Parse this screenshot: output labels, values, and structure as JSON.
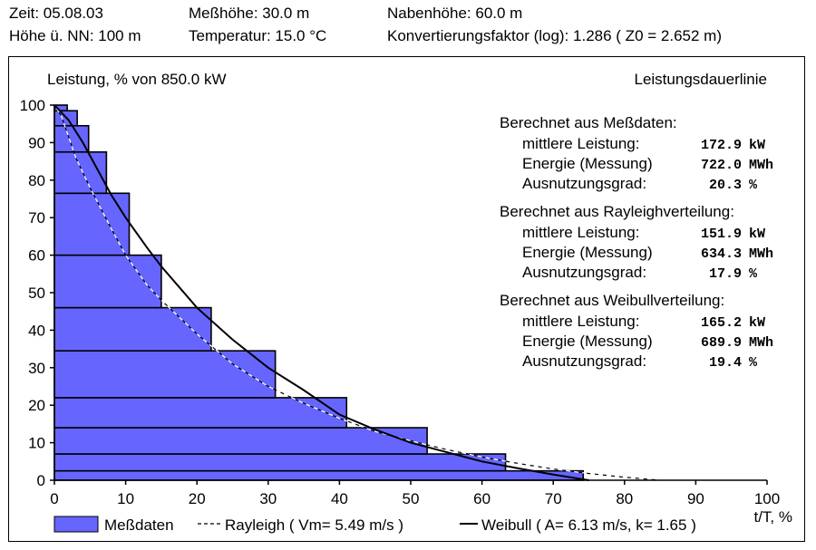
{
  "header": {
    "zeit": "Zeit:  05.08.03",
    "hoehe_nn": "Höhe ü. NN:  100 m",
    "messhoehe": "Meßhöhe: 30.0 m",
    "temperatur": "Temperatur: 15.0 °C",
    "nabenhoehe": "Nabenhöhe: 60.0 m",
    "konvertierung": "Konvertierungsfaktor (log):  1.286 ( Z0 = 2.652 m)"
  },
  "chart_data": {
    "type": "bar",
    "title": "Leistungsdauerlinie",
    "ylabel": "Leistung, % von 850.0 kW",
    "xlabel": "t/T, %",
    "xlim": [
      0,
      100
    ],
    "ylim": [
      0,
      100
    ],
    "x_ticks": [
      0,
      10,
      20,
      30,
      40,
      50,
      60,
      70,
      80,
      90,
      100
    ],
    "y_ticks": [
      0,
      10,
      20,
      30,
      40,
      50,
      60,
      70,
      80,
      90,
      100
    ],
    "x_tick_labels": [
      "0",
      "10",
      "20",
      "30",
      "40",
      "50",
      "60",
      "70",
      "80",
      "90",
      "100"
    ],
    "y_tick_labels": [
      "0",
      "10",
      "20",
      "30",
      "40",
      "50",
      "60",
      "70",
      "80",
      "90",
      "100"
    ],
    "colors": {
      "bars": "#6666ff",
      "rayleigh": "#ffffff",
      "weibull": "#000000"
    },
    "bars": [
      {
        "y0": 0.0,
        "y1": 2.5,
        "x": 74.2
      },
      {
        "y0": 2.5,
        "y1": 7.0,
        "x": 63.3
      },
      {
        "y0": 7.0,
        "y1": 14.0,
        "x": 52.3
      },
      {
        "y0": 14.0,
        "y1": 22.0,
        "x": 41.0
      },
      {
        "y0": 22.0,
        "y1": 34.5,
        "x": 31.0
      },
      {
        "y0": 34.5,
        "y1": 46.0,
        "x": 22.0
      },
      {
        "y0": 46.0,
        "y1": 60.0,
        "x": 15.0
      },
      {
        "y0": 60.0,
        "y1": 76.5,
        "x": 10.5
      },
      {
        "y0": 76.5,
        "y1": 87.5,
        "x": 7.3
      },
      {
        "y0": 87.5,
        "y1": 94.5,
        "x": 4.8
      },
      {
        "y0": 94.5,
        "y1": 98.5,
        "x": 3.2
      },
      {
        "y0": 98.5,
        "y1": 100.0,
        "x": 1.8
      }
    ],
    "series": [
      {
        "name": "Rayleigh ( Vm= 5.49 m/s )",
        "x": [
          0,
          1,
          3,
          5,
          8,
          10,
          13,
          15,
          20,
          25,
          30,
          35,
          40,
          45,
          50,
          55,
          60,
          65,
          70,
          75,
          80,
          85
        ],
        "y": [
          100,
          97,
          86,
          78,
          67,
          60,
          52,
          48,
          39,
          31,
          25,
          20.5,
          16.5,
          13,
          10.5,
          8.2,
          6.2,
          4.5,
          3,
          1.8,
          0.8,
          0
        ]
      },
      {
        "name": "Weibull ( A= 6.13 m/s, k= 1.65 )",
        "x": [
          0,
          2,
          4,
          6,
          8,
          10,
          13,
          15,
          20,
          25,
          30,
          35,
          40,
          45,
          50,
          55,
          60,
          65,
          70,
          75
        ],
        "y": [
          100,
          96,
          90,
          83,
          76,
          70,
          62,
          57,
          46,
          37.5,
          30,
          24,
          17.5,
          13.5,
          10,
          7.5,
          5,
          3.2,
          1.5,
          0
        ]
      }
    ],
    "legend": {
      "position": "bottom",
      "entries": [
        "Meßdaten",
        "Rayleigh ( Vm= 5.49 m/s )",
        "Weibull ( A= 6.13 m/s, k= 1.65 )"
      ]
    }
  },
  "stats": [
    {
      "heading": "Berechnet aus Meßdaten:",
      "rows": [
        {
          "label": "mittlere Leistung:",
          "value": "172.9",
          "unit": "kW"
        },
        {
          "label": "Energie (Messung)",
          "value": "722.0",
          "unit": "MWh"
        },
        {
          "label": "Ausnutzungsgrad:",
          "value": "20.3",
          "unit": "%"
        }
      ]
    },
    {
      "heading": "Berechnet aus Rayleighverteilung:",
      "rows": [
        {
          "label": "mittlere Leistung:",
          "value": "151.9",
          "unit": "kW"
        },
        {
          "label": "Energie (Messung)",
          "value": "634.3",
          "unit": "MWh"
        },
        {
          "label": "Ausnutzungsgrad:",
          "value": "17.9",
          "unit": "%"
        }
      ]
    },
    {
      "heading": "Berechnet aus Weibullverteilung:",
      "rows": [
        {
          "label": "mittlere Leistung:",
          "value": "165.2",
          "unit": "kW"
        },
        {
          "label": "Energie (Messung)",
          "value": "689.9",
          "unit": "MWh"
        },
        {
          "label": "Ausnutzungsgrad:",
          "value": "19.4",
          "unit": "%"
        }
      ]
    }
  ]
}
